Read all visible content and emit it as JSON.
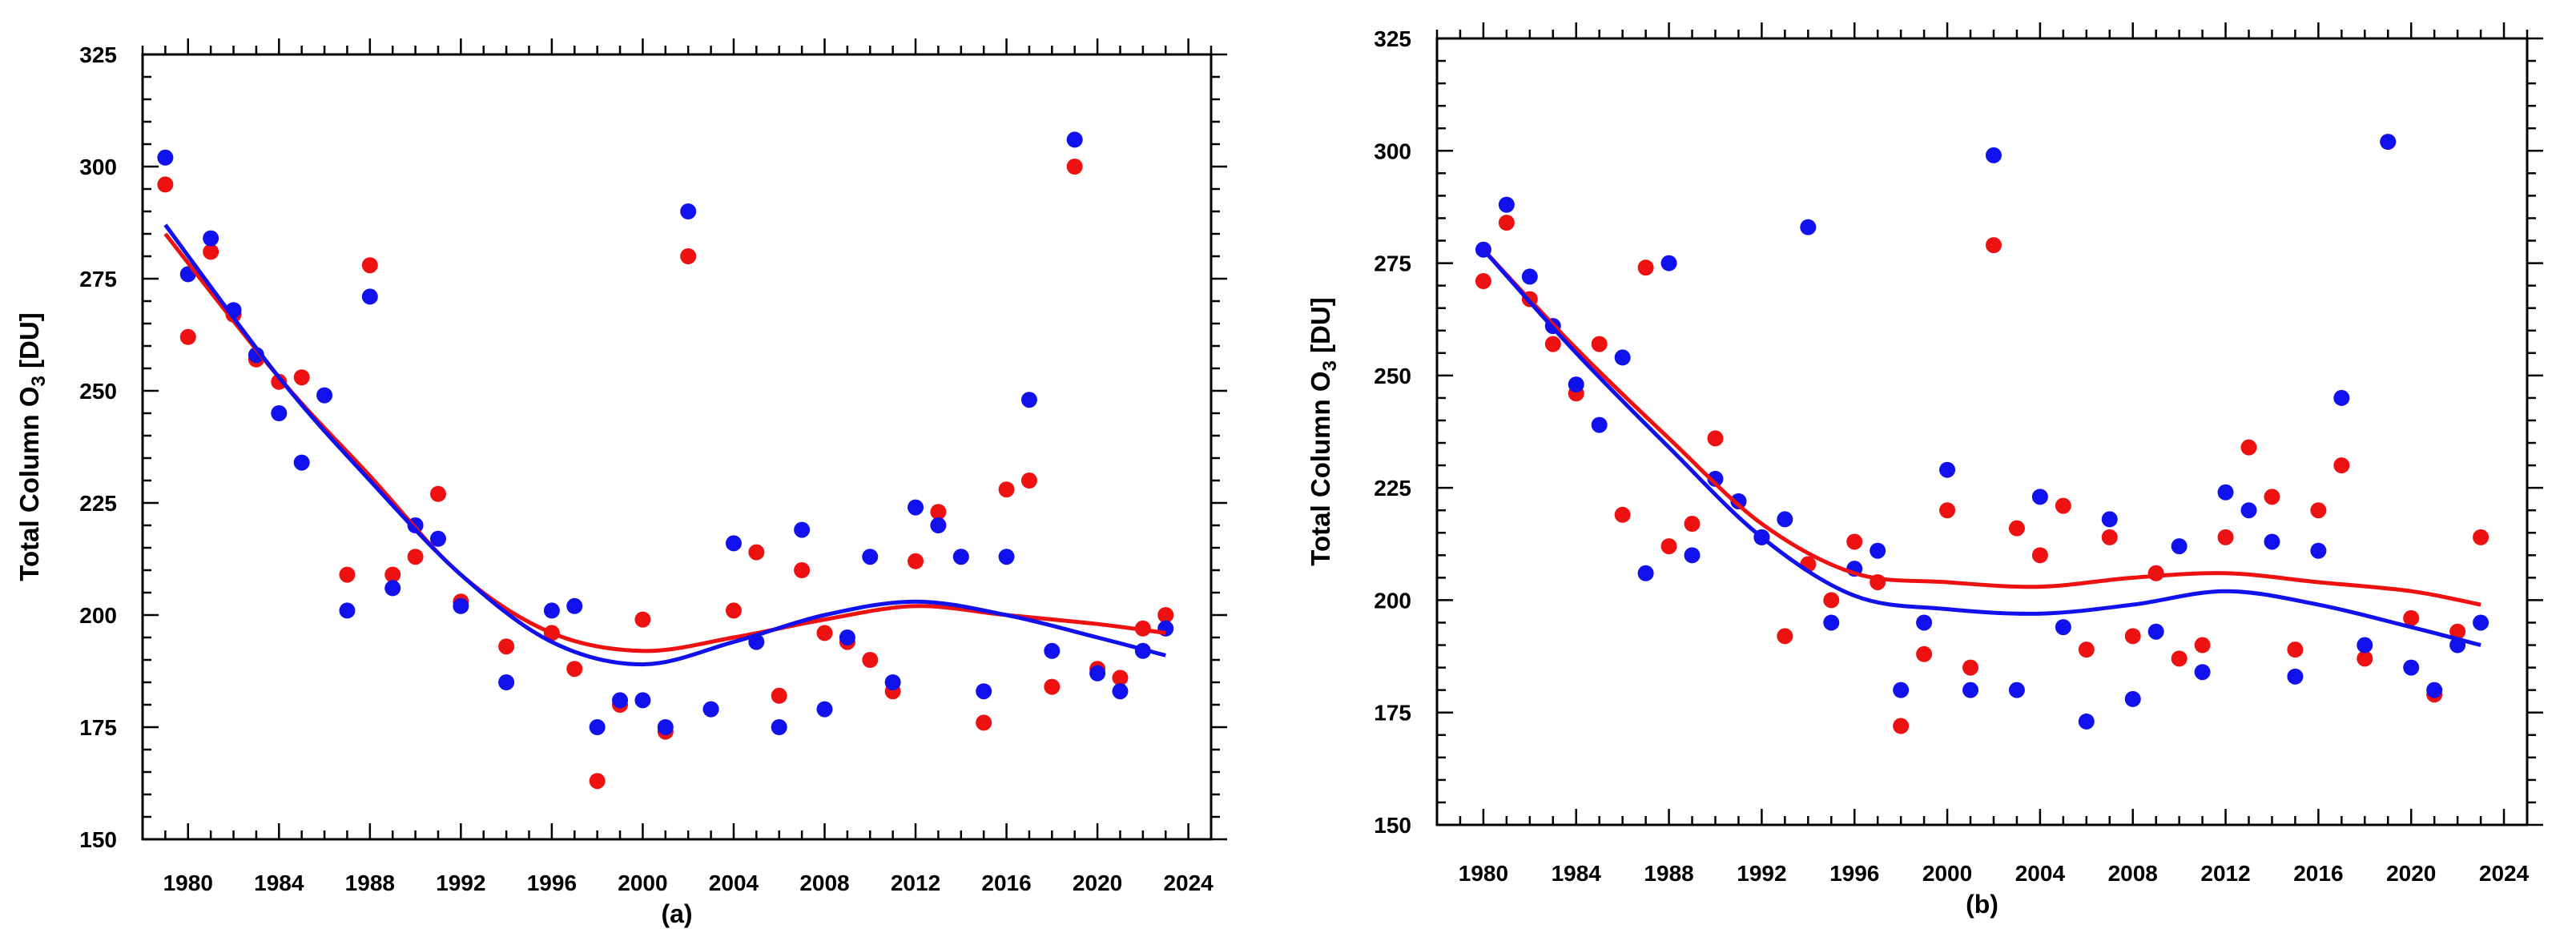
{
  "colors": {
    "series_a": "#ee1111",
    "series_b": "#1111ee"
  },
  "chart_data": [
    {
      "type": "scatter",
      "panel_label": "(a)",
      "ylabel": "Total Column O",
      "ylabel_sub": "3",
      "ylabel_suffix": " [DU]",
      "xlim": [
        1978,
        2025
      ],
      "ylim": [
        150,
        325
      ],
      "xticks": [
        "1980",
        "1984",
        "1988",
        "1992",
        "1996",
        "2000",
        "2004",
        "2008",
        "2012",
        "2016",
        "2020",
        "2024"
      ],
      "yticks": [
        "150",
        "175",
        "200",
        "225",
        "250",
        "275",
        "300",
        "325"
      ],
      "years": [
        1979,
        1980,
        1981,
        1982,
        1983,
        1984,
        1985,
        1986,
        1987,
        1988,
        1989,
        1990,
        1991,
        1992,
        1994,
        1996,
        1997,
        1998,
        1999,
        2000,
        2001,
        2002,
        2003,
        2004,
        2005,
        2006,
        2007,
        2008,
        2009,
        2010,
        2011,
        2012,
        2013,
        2014,
        2015,
        2016,
        2017,
        2018,
        2019,
        2020,
        2021,
        2022,
        2023
      ],
      "series": [
        {
          "name": "red",
          "color": "#ee1111",
          "values": [
            296,
            262,
            281,
            267,
            257,
            252,
            253,
            null,
            209,
            278,
            209,
            213,
            227,
            203,
            193,
            196,
            188,
            163,
            180,
            199,
            174,
            280,
            179,
            201,
            214,
            182,
            210,
            196,
            194,
            190,
            183,
            212,
            223,
            213,
            176,
            228,
            230,
            184,
            300,
            188,
            186,
            197,
            200
          ],
          "trend": [
            [
              1979,
              285
            ],
            [
              1984,
              253
            ],
            [
              1988,
              231
            ],
            [
              1992,
              209
            ],
            [
              1996,
              196
            ],
            [
              2000,
              192
            ],
            [
              2004,
              195
            ],
            [
              2008,
              199
            ],
            [
              2012,
              202
            ],
            [
              2016,
              200
            ],
            [
              2020,
              198
            ],
            [
              2023,
              196
            ]
          ]
        },
        {
          "name": "blue",
          "color": "#1111ee",
          "values": [
            302,
            276,
            284,
            268,
            258,
            245,
            234,
            249,
            201,
            271,
            206,
            220,
            217,
            202,
            185,
            201,
            202,
            175,
            181,
            181,
            175,
            290,
            179,
            216,
            194,
            175,
            219,
            179,
            195,
            213,
            185,
            224,
            220,
            213,
            183,
            213,
            248,
            192,
            306,
            187,
            183,
            192,
            197
          ],
          "trend": [
            [
              1979,
              287
            ],
            [
              1984,
              253
            ],
            [
              1988,
              230
            ],
            [
              1992,
              209
            ],
            [
              1996,
              194
            ],
            [
              2000,
              189
            ],
            [
              2004,
              194
            ],
            [
              2008,
              200
            ],
            [
              2012,
              203
            ],
            [
              2016,
              200
            ],
            [
              2020,
              195
            ],
            [
              2023,
              191
            ]
          ]
        }
      ]
    },
    {
      "type": "scatter",
      "panel_label": "(b)",
      "ylabel": "Total Column O",
      "ylabel_sub": "3",
      "ylabel_suffix": " [DU]",
      "xlim": [
        1978,
        2025
      ],
      "ylim": [
        150,
        325
      ],
      "xticks": [
        "1980",
        "1984",
        "1988",
        "1992",
        "1996",
        "2000",
        "2004",
        "2008",
        "2012",
        "2016",
        "2020",
        "2024"
      ],
      "yticks": [
        "150",
        "175",
        "200",
        "225",
        "250",
        "275",
        "300",
        "325"
      ],
      "years": [
        1980,
        1981,
        1982,
        1983,
        1984,
        1985,
        1986,
        1987,
        1988,
        1989,
        1990,
        1991,
        1992,
        1993,
        1994,
        1995,
        1996,
        1997,
        1998,
        1999,
        2000,
        2001,
        2002,
        2003,
        2004,
        2005,
        2006,
        2007,
        2008,
        2009,
        2010,
        2011,
        2012,
        2013,
        2014,
        2015,
        2016,
        2017,
        2018,
        2019,
        2020,
        2021,
        2022,
        2023
      ],
      "series": [
        {
          "name": "red",
          "color": "#ee1111",
          "values": [
            271,
            284,
            267,
            257,
            246,
            257,
            219,
            274,
            212,
            217,
            236,
            222,
            214,
            192,
            208,
            200,
            213,
            204,
            172,
            188,
            220,
            185,
            279,
            216,
            210,
            221,
            189,
            214,
            192,
            206,
            187,
            190,
            214,
            234,
            223,
            189,
            220,
            230,
            187,
            302,
            196,
            179,
            193,
            214
          ],
          "trend": [
            [
              1980,
              278
            ],
            [
              1984,
              256
            ],
            [
              1988,
              236
            ],
            [
              1992,
              217
            ],
            [
              1996,
              206
            ],
            [
              2000,
              204
            ],
            [
              2004,
              203
            ],
            [
              2008,
              205
            ],
            [
              2012,
              206
            ],
            [
              2016,
              204
            ],
            [
              2020,
              202
            ],
            [
              2023,
              199
            ]
          ]
        },
        {
          "name": "blue",
          "color": "#1111ee",
          "values": [
            278,
            288,
            272,
            261,
            248,
            239,
            254,
            206,
            275,
            210,
            227,
            222,
            214,
            218,
            283,
            195,
            207,
            211,
            180,
            195,
            229,
            180,
            299,
            180,
            223,
            194,
            173,
            218,
            178,
            193,
            212,
            184,
            224,
            220,
            213,
            183,
            211,
            245,
            190,
            302,
            185,
            180,
            190,
            195
          ],
          "trend": [
            [
              1980,
              278
            ],
            [
              1984,
              255
            ],
            [
              1988,
              234
            ],
            [
              1992,
              214
            ],
            [
              1996,
              201
            ],
            [
              2000,
              198
            ],
            [
              2004,
              197
            ],
            [
              2008,
              199
            ],
            [
              2012,
              202
            ],
            [
              2016,
              199
            ],
            [
              2020,
              194
            ],
            [
              2023,
              190
            ]
          ]
        }
      ]
    }
  ]
}
